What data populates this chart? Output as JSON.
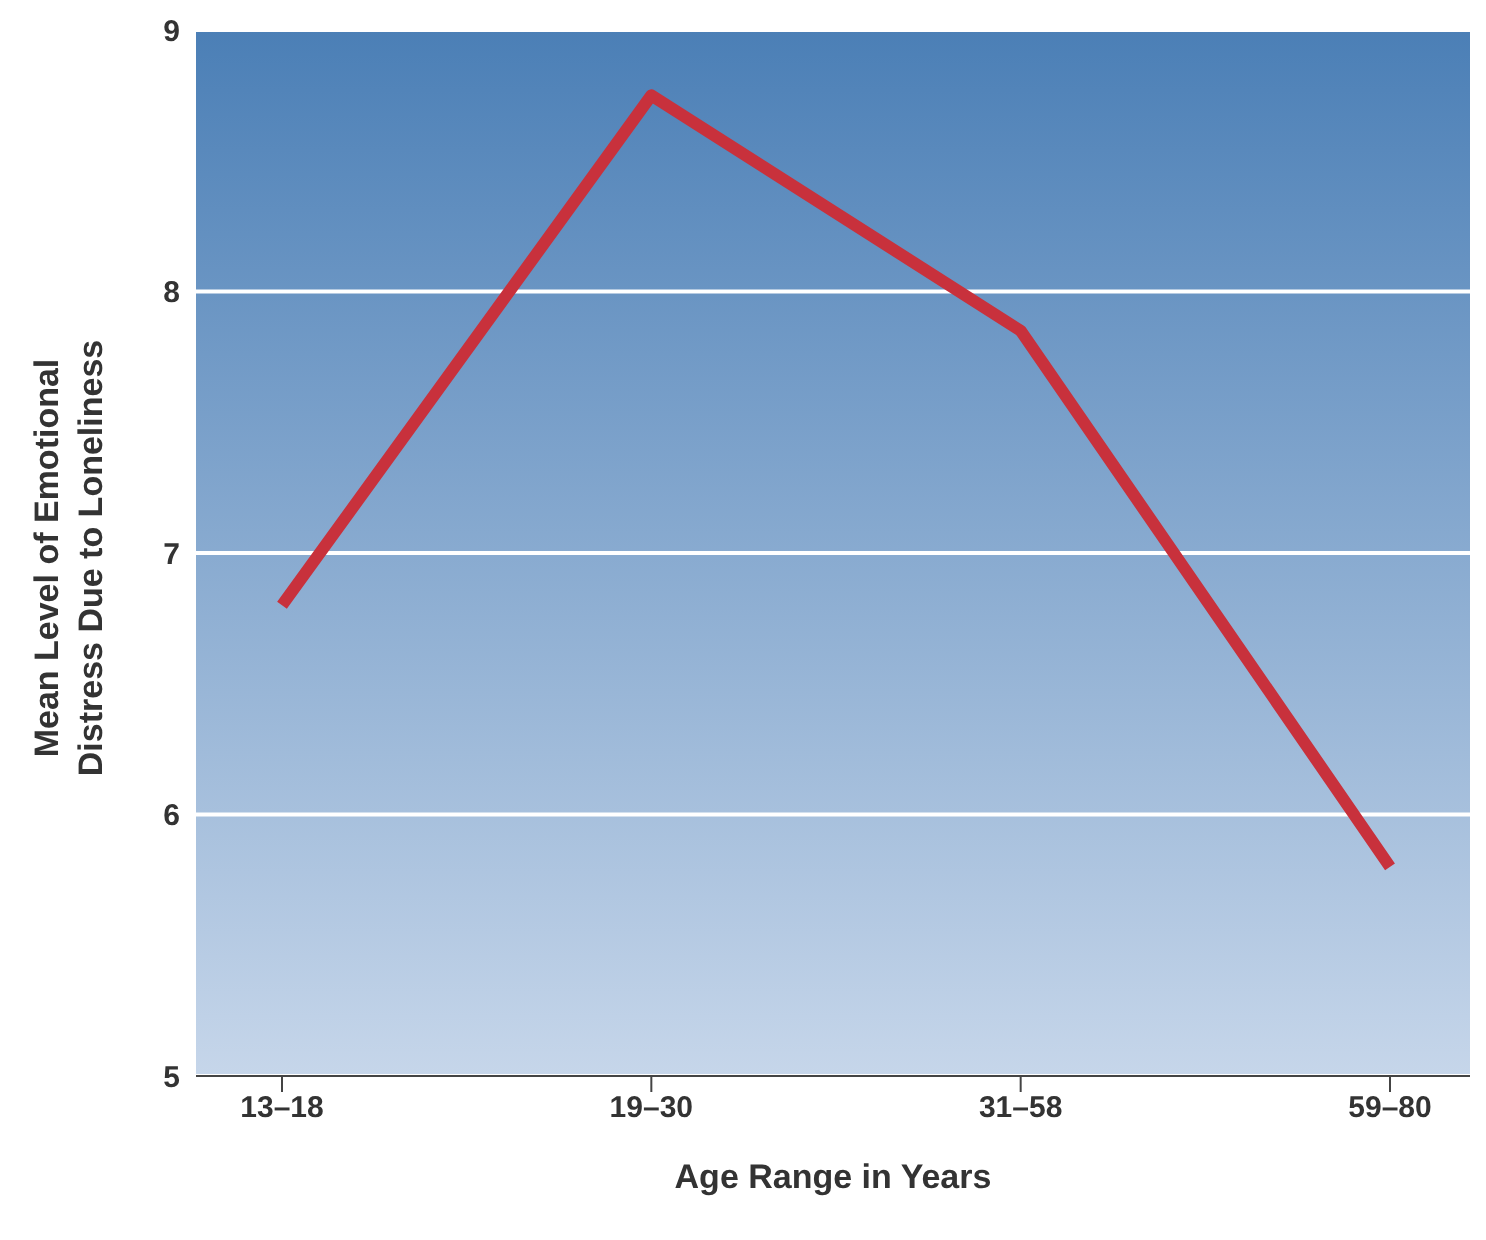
{
  "chart_data": {
    "type": "line",
    "xlabel": "Age Range in Years",
    "ylabel": "Mean Level of Emotional Distress Due to Loneliness",
    "categories": [
      "13–18",
      "19–30",
      "31–58",
      "59–80"
    ],
    "series": [
      {
        "color": "#c8313c",
        "values": [
          6.8,
          8.75,
          7.85,
          5.8
        ]
      }
    ],
    "ylim": [
      5,
      9
    ],
    "yticks": [
      5,
      6,
      7,
      8,
      9
    ],
    "grid": "y",
    "marker": "none",
    "line_style": "solid",
    "legend": false
  }
}
